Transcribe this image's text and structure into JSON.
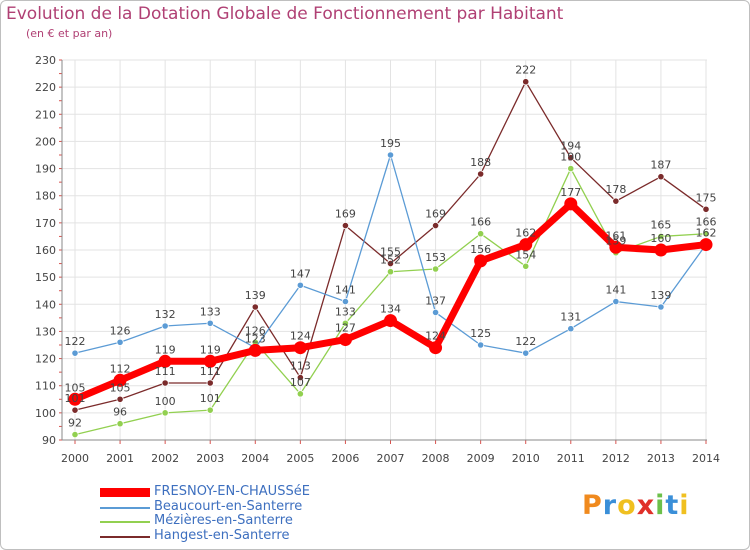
{
  "header": {
    "title": "Evolution de la Dotation Globale de Fonctionnement par Habitant",
    "subtitle": "(en € et par an)"
  },
  "logo": {
    "letters": [
      "P",
      "r",
      "o",
      "x",
      "i",
      "t",
      "i"
    ],
    "colors": [
      "#f08a1e",
      "#3a8fd8",
      "#f0c020",
      "#e0302a",
      "#6cc04a",
      "#3a8fd8",
      "#f0c020"
    ]
  },
  "chart_data": {
    "type": "line",
    "x": [
      2000,
      2001,
      2002,
      2003,
      2004,
      2005,
      2006,
      2007,
      2008,
      2009,
      2010,
      2011,
      2012,
      2013,
      2014
    ],
    "ylim": [
      90,
      230
    ],
    "yticks": [
      90,
      100,
      110,
      120,
      130,
      140,
      150,
      160,
      170,
      180,
      190,
      200,
      210,
      220,
      230
    ],
    "grid": true,
    "legend_position": "bottom-left",
    "series": [
      {
        "name": "FRESNOY-EN-CHAUSSéE",
        "color": "#ff0000",
        "values": [
          105,
          112,
          119,
          119,
          123,
          124,
          127,
          134,
          124,
          156,
          162,
          177,
          161,
          160,
          162
        ],
        "labels": [
          "105",
          "112",
          "119",
          "119",
          "123",
          "124",
          "127",
          "134",
          "124",
          "156",
          "162",
          "177",
          "161",
          "160",
          "162"
        ]
      },
      {
        "name": "Beaucourt-en-Santerre",
        "color": "#5b9bd5",
        "values": [
          122,
          126,
          132,
          133,
          124,
          147,
          141,
          195,
          137,
          125,
          122,
          131,
          141,
          139,
          162
        ],
        "labels": [
          "122",
          "126",
          "132",
          "133",
          "",
          "147",
          "141",
          "195",
          "137",
          "125",
          "122",
          "131",
          "141",
          "139",
          ""
        ]
      },
      {
        "name": "Mézières-en-Santerre",
        "color": "#92d050",
        "values": [
          92,
          96,
          100,
          101,
          126,
          107,
          133,
          152,
          153,
          166,
          154,
          190,
          159,
          165,
          166
        ],
        "labels": [
          "92",
          "96",
          "100",
          "101",
          "126",
          "107",
          "133",
          "152",
          "153",
          "166",
          "154",
          "190",
          "159",
          "165",
          "166"
        ]
      },
      {
        "name": "Hangest-en-Santerre",
        "color": "#7b2b2b",
        "values": [
          101,
          105,
          111,
          111,
          139,
          113,
          169,
          155,
          169,
          188,
          222,
          194,
          178,
          187,
          175
        ],
        "labels": [
          "101",
          "105",
          "111",
          "111",
          "139",
          "113",
          "169",
          "155",
          "169",
          "188",
          "222",
          "194",
          "178",
          "187",
          "175"
        ]
      }
    ]
  }
}
